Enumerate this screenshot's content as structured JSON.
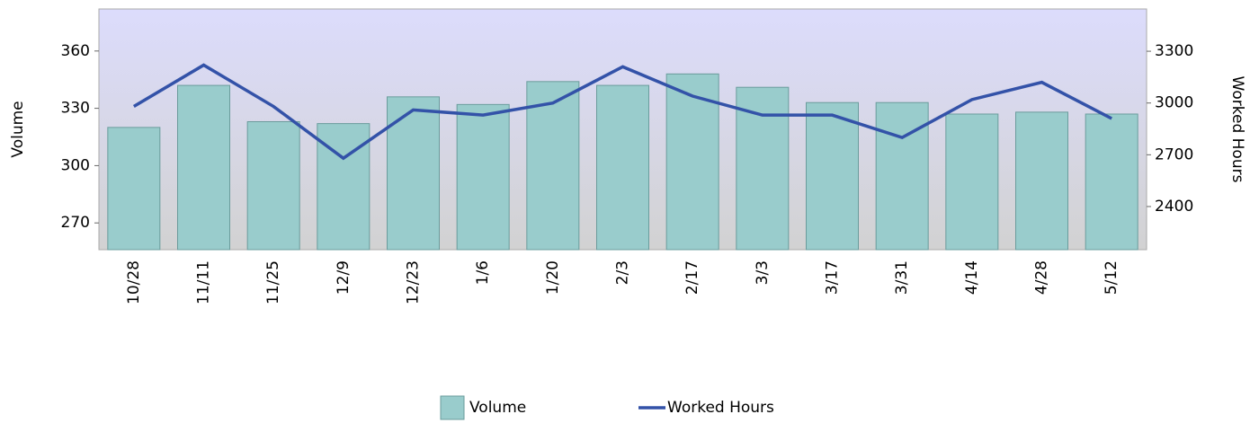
{
  "chart_data": {
    "type": "bar-line",
    "categories": [
      "10/28",
      "11/11",
      "11/25",
      "12/9",
      "12/23",
      "1/6",
      "1/20",
      "2/3",
      "2/17",
      "3/3",
      "3/17",
      "3/31",
      "4/14",
      "4/28",
      "5/12"
    ],
    "series": [
      {
        "name": "Volume",
        "type": "bar",
        "color": "#99cccc",
        "values": [
          320,
          342,
          323,
          322,
          336,
          332,
          344,
          342,
          348,
          341,
          333,
          333,
          327,
          328,
          327
        ]
      },
      {
        "name": "Worked Hours",
        "type": "line",
        "axis": "y2",
        "color": "#3352a8",
        "values": [
          2980,
          3220,
          2980,
          2680,
          2960,
          2930,
          3000,
          3210,
          3040,
          2930,
          2930,
          2800,
          3020,
          3120,
          2910
        ]
      }
    ],
    "ylabel": "Volume",
    "y2label": "Worked Hours",
    "ylim": [
      256,
      382
    ],
    "yticks": [
      270,
      300,
      330,
      360
    ],
    "y2lim": [
      2150,
      3545
    ],
    "y2ticks": [
      2400,
      2700,
      3000,
      3300
    ]
  }
}
